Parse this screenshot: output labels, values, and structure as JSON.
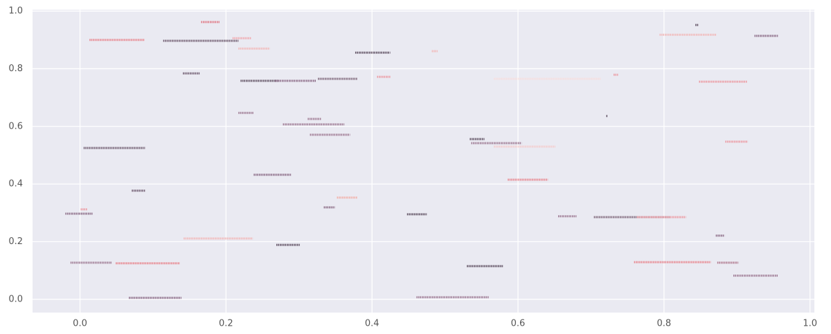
{
  "chart_data": {
    "type": "hlines",
    "grid": true,
    "xlim": [
      -0.065,
      1.006
    ],
    "ylim": [
      -0.046,
      1.005
    ],
    "xticks": [
      {
        "value": 0,
        "label": "0.0"
      },
      0.2,
      0.4,
      0.6,
      0.8,
      {
        "value": 1,
        "label": "1.0"
      }
    ],
    "yticks": [
      {
        "value": 0,
        "label": "0.0"
      },
      0.2,
      0.4,
      0.6,
      0.8,
      {
        "value": 1,
        "label": "1.0"
      }
    ],
    "segments": [
      {
        "y": 0.9,
        "xmin": 0.013,
        "xmax": 0.088,
        "color": "#e8868e"
      },
      {
        "y": 0.897,
        "xmin": 0.114,
        "xmax": 0.217,
        "color": "#6e5a6e"
      },
      {
        "y": 0.962,
        "xmin": 0.166,
        "xmax": 0.191,
        "color": "#e07a86"
      },
      {
        "y": 0.906,
        "xmin": 0.209,
        "xmax": 0.235,
        "color": "#f0a8ae"
      },
      {
        "y": 0.87,
        "xmin": 0.217,
        "xmax": 0.26,
        "color": "#f2b8b8"
      },
      {
        "y": 0.784,
        "xmin": 0.141,
        "xmax": 0.164,
        "color": "#6e5a6e"
      },
      {
        "y": 0.758,
        "xmin": 0.22,
        "xmax": 0.272,
        "color": "#5d4e60"
      },
      {
        "y": 0.758,
        "xmin": 0.267,
        "xmax": 0.323,
        "color": "#8a6a85"
      },
      {
        "y": 0.765,
        "xmin": 0.326,
        "xmax": 0.38,
        "color": "#7d6578"
      },
      {
        "y": 0.856,
        "xmin": 0.377,
        "xmax": 0.425,
        "color": "#5d4e60"
      },
      {
        "y": 0.772,
        "xmin": 0.407,
        "xmax": 0.425,
        "color": "#ec9aa2"
      },
      {
        "y": 0.861,
        "xmin": 0.482,
        "xmax": 0.49,
        "color": "#f2b8b8"
      },
      {
        "y": 0.647,
        "xmin": 0.217,
        "xmax": 0.238,
        "color": "#9e7a93"
      },
      {
        "y": 0.626,
        "xmin": 0.312,
        "xmax": 0.33,
        "color": "#9e7a93"
      },
      {
        "y": 0.607,
        "xmin": 0.278,
        "xmax": 0.362,
        "color": "#9e7a93"
      },
      {
        "y": 0.571,
        "xmin": 0.315,
        "xmax": 0.37,
        "color": "#9e7a93"
      },
      {
        "y": 0.525,
        "xmin": 0.005,
        "xmax": 0.089,
        "color": "#6e5a6e"
      },
      {
        "y": 0.377,
        "xmin": 0.071,
        "xmax": 0.089,
        "color": "#6e5a6e"
      },
      {
        "y": 0.432,
        "xmin": 0.238,
        "xmax": 0.289,
        "color": "#8a6a85"
      },
      {
        "y": 0.353,
        "xmin": 0.352,
        "xmax": 0.38,
        "color": "#f2b0a8"
      },
      {
        "y": 0.319,
        "xmin": 0.334,
        "xmax": 0.349,
        "color": "#8a6a85"
      },
      {
        "y": 0.312,
        "xmin": 0.001,
        "xmax": 0.01,
        "color": "#ec9aa2"
      },
      {
        "y": 0.297,
        "xmin": -0.02,
        "xmax": 0.017,
        "color": "#8a6a85"
      },
      {
        "y": 0.211,
        "xmin": 0.142,
        "xmax": 0.237,
        "color": "#f2b8b8"
      },
      {
        "y": 0.189,
        "xmin": 0.269,
        "xmax": 0.301,
        "color": "#5d4e60"
      },
      {
        "y": 0.127,
        "xmin": -0.013,
        "xmax": 0.044,
        "color": "#9e7a93"
      },
      {
        "y": 0.125,
        "xmin": 0.049,
        "xmax": 0.137,
        "color": "#e8868e"
      },
      {
        "y": 0.005,
        "xmin": 0.067,
        "xmax": 0.139,
        "color": "#8a6a85"
      },
      {
        "y": 0.295,
        "xmin": 0.448,
        "xmax": 0.475,
        "color": "#5d4e60"
      },
      {
        "y": 0.007,
        "xmin": 0.461,
        "xmax": 0.56,
        "color": "#9e7a93"
      },
      {
        "y": 0.115,
        "xmin": 0.53,
        "xmax": 0.58,
        "color": "#5d4e60"
      },
      {
        "y": 0.556,
        "xmin": 0.534,
        "xmax": 0.554,
        "color": "#5d4e60"
      },
      {
        "y": 0.542,
        "xmin": 0.536,
        "xmax": 0.605,
        "color": "#9e7a93"
      },
      {
        "y": 0.53,
        "xmin": 0.567,
        "xmax": 0.651,
        "color": "#f5cccc"
      },
      {
        "y": 0.415,
        "xmin": 0.586,
        "xmax": 0.641,
        "color": "#e8868e"
      },
      {
        "y": 0.288,
        "xmin": 0.655,
        "xmax": 0.68,
        "color": "#9e7a93"
      },
      {
        "y": 0.285,
        "xmin": 0.704,
        "xmax": 0.808,
        "color": "#7d6578"
      },
      {
        "y": 0.285,
        "xmin": 0.763,
        "xmax": 0.83,
        "color": "#ec9aa2"
      },
      {
        "y": 0.765,
        "xmin": 0.567,
        "xmax": 0.713,
        "color": "#f7dede"
      },
      {
        "y": 0.779,
        "xmin": 0.731,
        "xmax": 0.737,
        "color": "#ec9aa2"
      },
      {
        "y": 0.636,
        "xmin": 0.721,
        "xmax": 0.723,
        "color": "#5d4e60"
      },
      {
        "y": 0.952,
        "xmin": 0.843,
        "xmax": 0.847,
        "color": "#5d4e60"
      },
      {
        "y": 0.918,
        "xmin": 0.794,
        "xmax": 0.872,
        "color": "#f2b8b8"
      },
      {
        "y": 0.914,
        "xmin": 0.924,
        "xmax": 0.956,
        "color": "#8a6a85"
      },
      {
        "y": 0.755,
        "xmin": 0.848,
        "xmax": 0.914,
        "color": "#ec9aa2"
      },
      {
        "y": 0.547,
        "xmin": 0.884,
        "xmax": 0.915,
        "color": "#ec9aa2"
      },
      {
        "y": 0.221,
        "xmin": 0.871,
        "xmax": 0.883,
        "color": "#8a6a85"
      },
      {
        "y": 0.129,
        "xmin": 0.759,
        "xmax": 0.864,
        "color": "#e8868e"
      },
      {
        "y": 0.127,
        "xmin": 0.873,
        "xmax": 0.902,
        "color": "#b07a8e"
      },
      {
        "y": 0.082,
        "xmin": 0.895,
        "xmax": 0.956,
        "color": "#9e7a93"
      }
    ]
  }
}
